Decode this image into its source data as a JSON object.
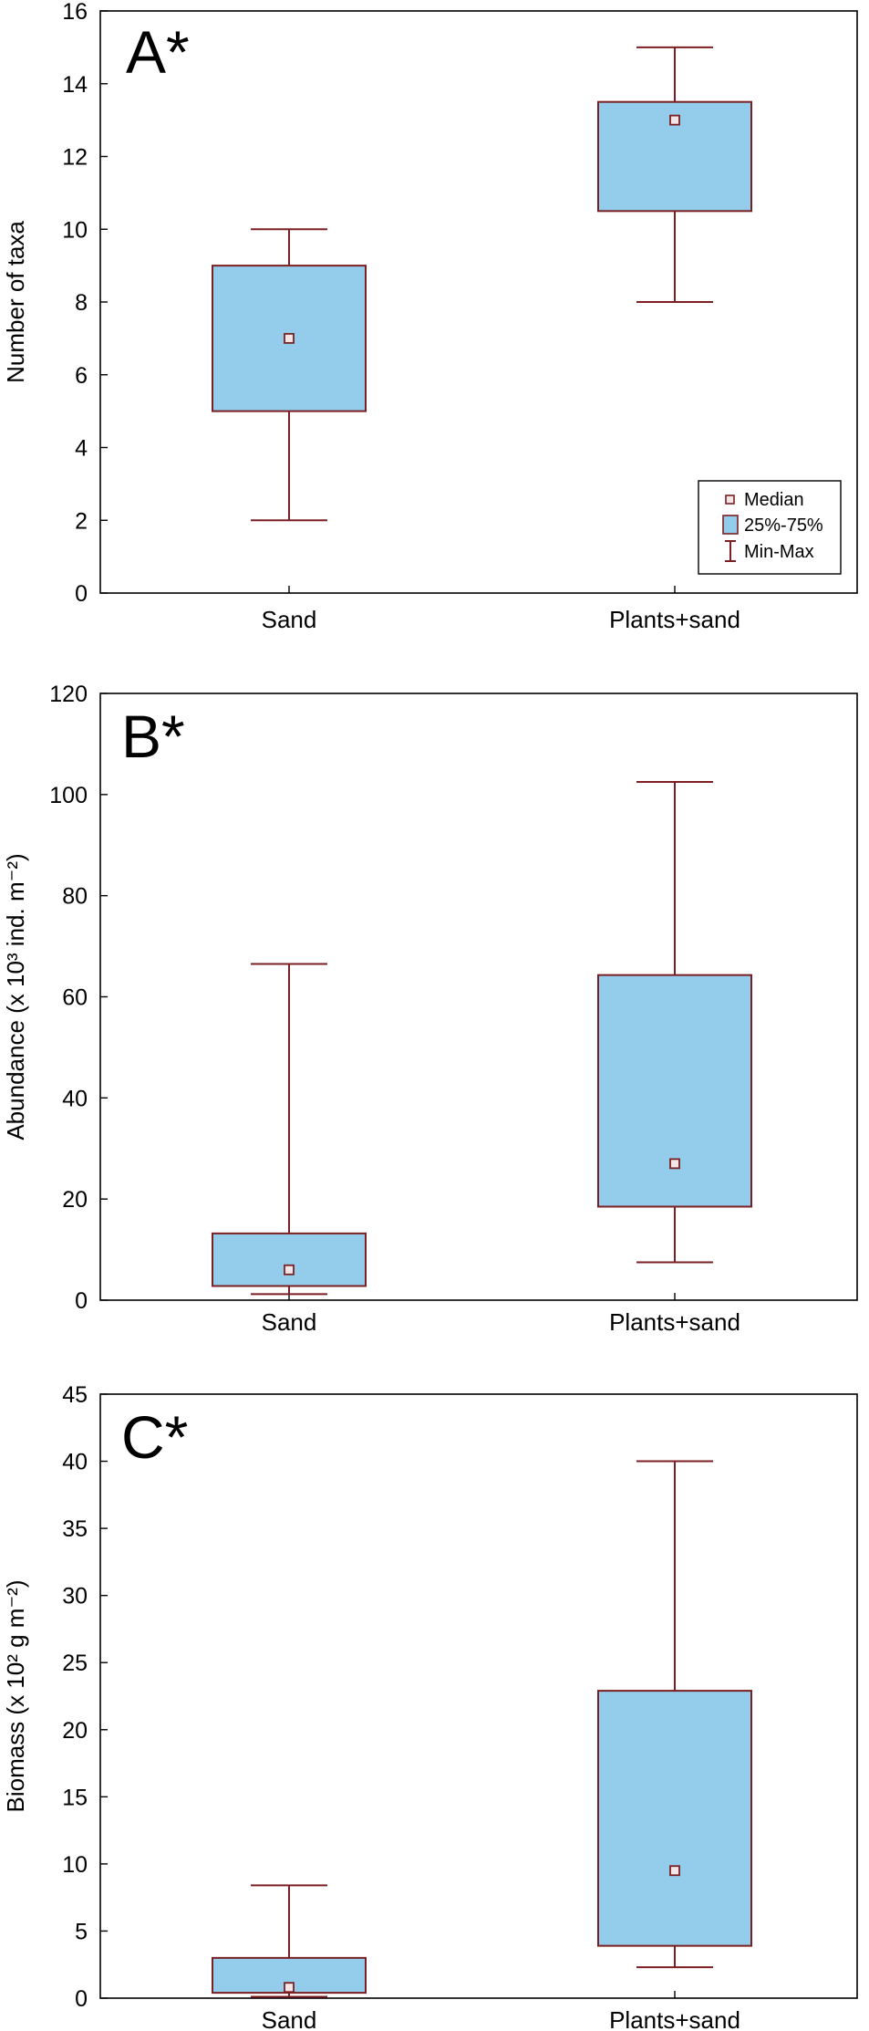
{
  "colors": {
    "box_fill": "#93cdeb",
    "box_stroke": "#7b1f22",
    "axis": "#000000"
  },
  "legend": {
    "median": "Median",
    "iqr": "25%-75%",
    "range": "Min-Max"
  },
  "chart_data": [
    {
      "type": "box",
      "panel_label": "A*",
      "ylabel": "Number of taxa",
      "ylim": [
        0,
        16
      ],
      "yticks": [
        0,
        2,
        4,
        6,
        8,
        10,
        12,
        14,
        16
      ],
      "categories": [
        "Sand",
        "Plants+sand"
      ],
      "boxes": [
        {
          "category": "Sand",
          "min": 2,
          "q1": 5,
          "median": 7,
          "q3": 9,
          "max": 10
        },
        {
          "category": "Plants+sand",
          "min": 8,
          "q1": 10.5,
          "median": 13,
          "q3": 13.5,
          "max": 15
        }
      ],
      "legend_position": "bottom-right"
    },
    {
      "type": "box",
      "panel_label": "B*",
      "ylabel": "Abundance (x 10³ ind. m⁻²)",
      "ylim": [
        0,
        120
      ],
      "yticks": [
        0,
        20,
        40,
        60,
        80,
        100,
        120
      ],
      "categories": [
        "Sand",
        "Plants+sand"
      ],
      "boxes": [
        {
          "category": "Sand",
          "min": 1.2,
          "q1": 2.8,
          "median": 6,
          "q3": 13.2,
          "max": 66.5
        },
        {
          "category": "Plants+sand",
          "min": 7.5,
          "q1": 18.5,
          "median": 27,
          "q3": 64.3,
          "max": 102.5
        }
      ]
    },
    {
      "type": "box",
      "panel_label": "C*",
      "ylabel": "Biomass (x 10² g m⁻²)",
      "ylim": [
        0,
        45
      ],
      "yticks": [
        0,
        5,
        10,
        15,
        20,
        25,
        30,
        35,
        40,
        45
      ],
      "categories": [
        "Sand",
        "Plants+sand"
      ],
      "boxes": [
        {
          "category": "Sand",
          "min": 0.1,
          "q1": 0.4,
          "median": 0.8,
          "q3": 3,
          "max": 8.4
        },
        {
          "category": "Plants+sand",
          "min": 2.3,
          "q1": 3.9,
          "median": 9.5,
          "q3": 22.9,
          "max": 40
        }
      ]
    }
  ]
}
